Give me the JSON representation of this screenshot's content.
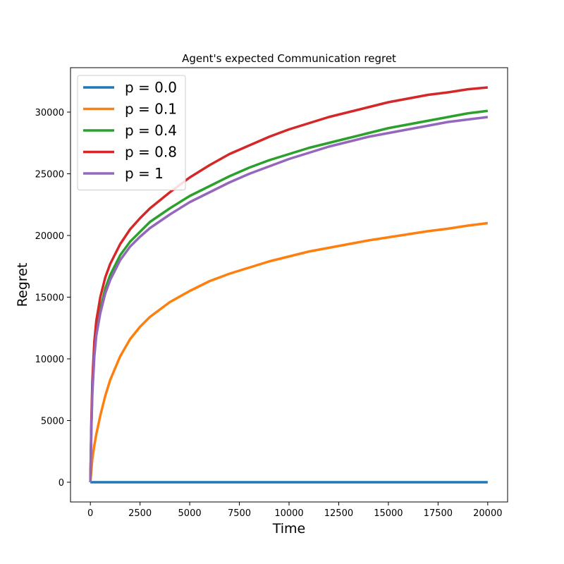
{
  "chart_data": {
    "type": "line",
    "title": "Agent's expected Communication regret",
    "xlabel": "Time",
    "ylabel": "Regret",
    "xlim": [
      -1000,
      21000
    ],
    "ylim": [
      -1600,
      33600
    ],
    "xticks": [
      0,
      2500,
      5000,
      7500,
      10000,
      12500,
      15000,
      17500,
      20000
    ],
    "yticks": [
      0,
      5000,
      10000,
      15000,
      20000,
      25000,
      30000
    ],
    "grid": false,
    "legend_position": "upper left",
    "x": [
      0,
      50,
      100,
      200,
      300,
      500,
      750,
      1000,
      1500,
      2000,
      2500,
      3000,
      4000,
      5000,
      6000,
      7000,
      8000,
      9000,
      10000,
      11000,
      12000,
      13000,
      14000,
      15000,
      16000,
      17000,
      18000,
      19000,
      20000
    ],
    "series": [
      {
        "name": "p = 0.0",
        "color": "#1f77b4",
        "values": [
          0,
          0,
          0,
          0,
          0,
          0,
          0,
          0,
          0,
          0,
          0,
          0,
          0,
          0,
          0,
          0,
          0,
          0,
          0,
          0,
          0,
          0,
          0,
          0,
          0,
          0,
          0,
          0,
          0
        ]
      },
      {
        "name": "p = 0.1",
        "color": "#ff7f0e",
        "values": [
          0,
          1000,
          1900,
          3000,
          3900,
          5400,
          7000,
          8300,
          10200,
          11600,
          12600,
          13400,
          14600,
          15500,
          16300,
          16900,
          17400,
          17900,
          18300,
          18700,
          19000,
          19300,
          19600,
          19850,
          20100,
          20350,
          20550,
          20800,
          21000
        ]
      },
      {
        "name": "p = 0.4",
        "color": "#2ca02c",
        "values": [
          0,
          4500,
          7500,
          10500,
          12200,
          14000,
          15700,
          16800,
          18400,
          19500,
          20300,
          21100,
          22200,
          23200,
          24000,
          24800,
          25500,
          26100,
          26600,
          27100,
          27500,
          27900,
          28300,
          28700,
          29000,
          29300,
          29600,
          29900,
          30100
        ]
      },
      {
        "name": "p = 0.8",
        "color": "#d62728",
        "values": [
          0,
          5000,
          8200,
          11400,
          13100,
          15000,
          16600,
          17700,
          19300,
          20500,
          21400,
          22200,
          23500,
          24700,
          25700,
          26600,
          27300,
          28000,
          28600,
          29100,
          29600,
          30000,
          30400,
          30800,
          31100,
          31400,
          31600,
          31850,
          32000
        ]
      },
      {
        "name": "p = 1",
        "color": "#9467bd",
        "values": [
          0,
          4200,
          7200,
          10200,
          11900,
          13700,
          15300,
          16400,
          18000,
          19100,
          19900,
          20600,
          21700,
          22700,
          23500,
          24300,
          25000,
          25600,
          26200,
          26700,
          27200,
          27600,
          28000,
          28300,
          28600,
          28900,
          29200,
          29400,
          29600
        ]
      }
    ]
  }
}
